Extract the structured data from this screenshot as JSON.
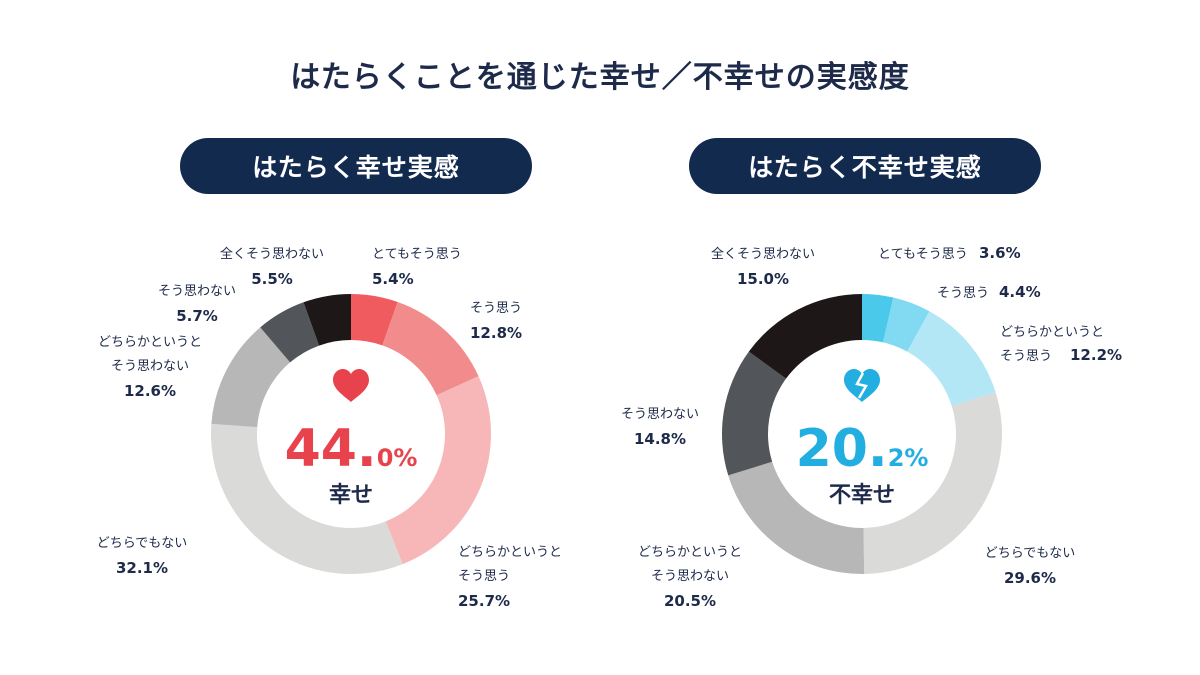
{
  "title": "はたらくことを通じた幸せ／不幸せの実感度",
  "chart_data": [
    {
      "type": "pie",
      "title": "はたらく幸せ実感",
      "center_value_int": "44.",
      "center_value_dec": "0%",
      "center_label": "幸せ",
      "center_icon": "heart-icon",
      "accent_color": "#e8434c",
      "slices": [
        {
          "label": [
            "とてもそう思う"
          ],
          "value": 5.4,
          "display": "5.4%",
          "color": "#ef5b5e"
        },
        {
          "label": [
            "そう思う"
          ],
          "value": 12.8,
          "display": "12.8%",
          "color": "#f28c8c"
        },
        {
          "label": [
            "どちらかというと",
            "そう思う"
          ],
          "value": 25.7,
          "display": "25.7%",
          "color": "#f7b7b8"
        },
        {
          "label": [
            "どちらでもない"
          ],
          "value": 32.1,
          "display": "32.1%",
          "color": "#dadad8"
        },
        {
          "label": [
            "どちらかというと",
            "そう思わない"
          ],
          "value": 12.6,
          "display": "12.6%",
          "color": "#b7b7b7"
        },
        {
          "label": [
            "そう思わない"
          ],
          "value": 5.7,
          "display": "5.7%",
          "color": "#525559"
        },
        {
          "label": [
            "全くそう思わない"
          ],
          "value": 5.5,
          "display": "5.5%",
          "color": "#1e1717"
        }
      ]
    },
    {
      "type": "pie",
      "title": "はたらく不幸せ実感",
      "center_value_int": "20.",
      "center_value_dec": "2%",
      "center_label": "不幸せ",
      "center_icon": "broken-heart-icon",
      "accent_color": "#22aee0",
      "slices": [
        {
          "label": [
            "とてもそう思う"
          ],
          "value": 3.6,
          "display": "3.6%",
          "color": "#4ac9ea"
        },
        {
          "label": [
            "そう思う"
          ],
          "value": 4.4,
          "display": "4.4%",
          "color": "#82daf2"
        },
        {
          "label": [
            "どちらかというと",
            "そう思う"
          ],
          "value": 12.2,
          "display": "12.2%",
          "color": "#b3e7f6"
        },
        {
          "label": [
            "どちらでもない"
          ],
          "value": 29.6,
          "display": "29.6%",
          "color": "#dadad8"
        },
        {
          "label": [
            "どちらかというと",
            "そう思わない"
          ],
          "value": 20.5,
          "display": "20.5%",
          "color": "#b7b7b7"
        },
        {
          "label": [
            "そう思わない"
          ],
          "value": 14.8,
          "display": "14.8%",
          "color": "#525559"
        },
        {
          "label": [
            "全くそう思わない"
          ],
          "value": 15.0,
          "display": "15.0%",
          "color": "#1e1717"
        }
      ]
    }
  ]
}
